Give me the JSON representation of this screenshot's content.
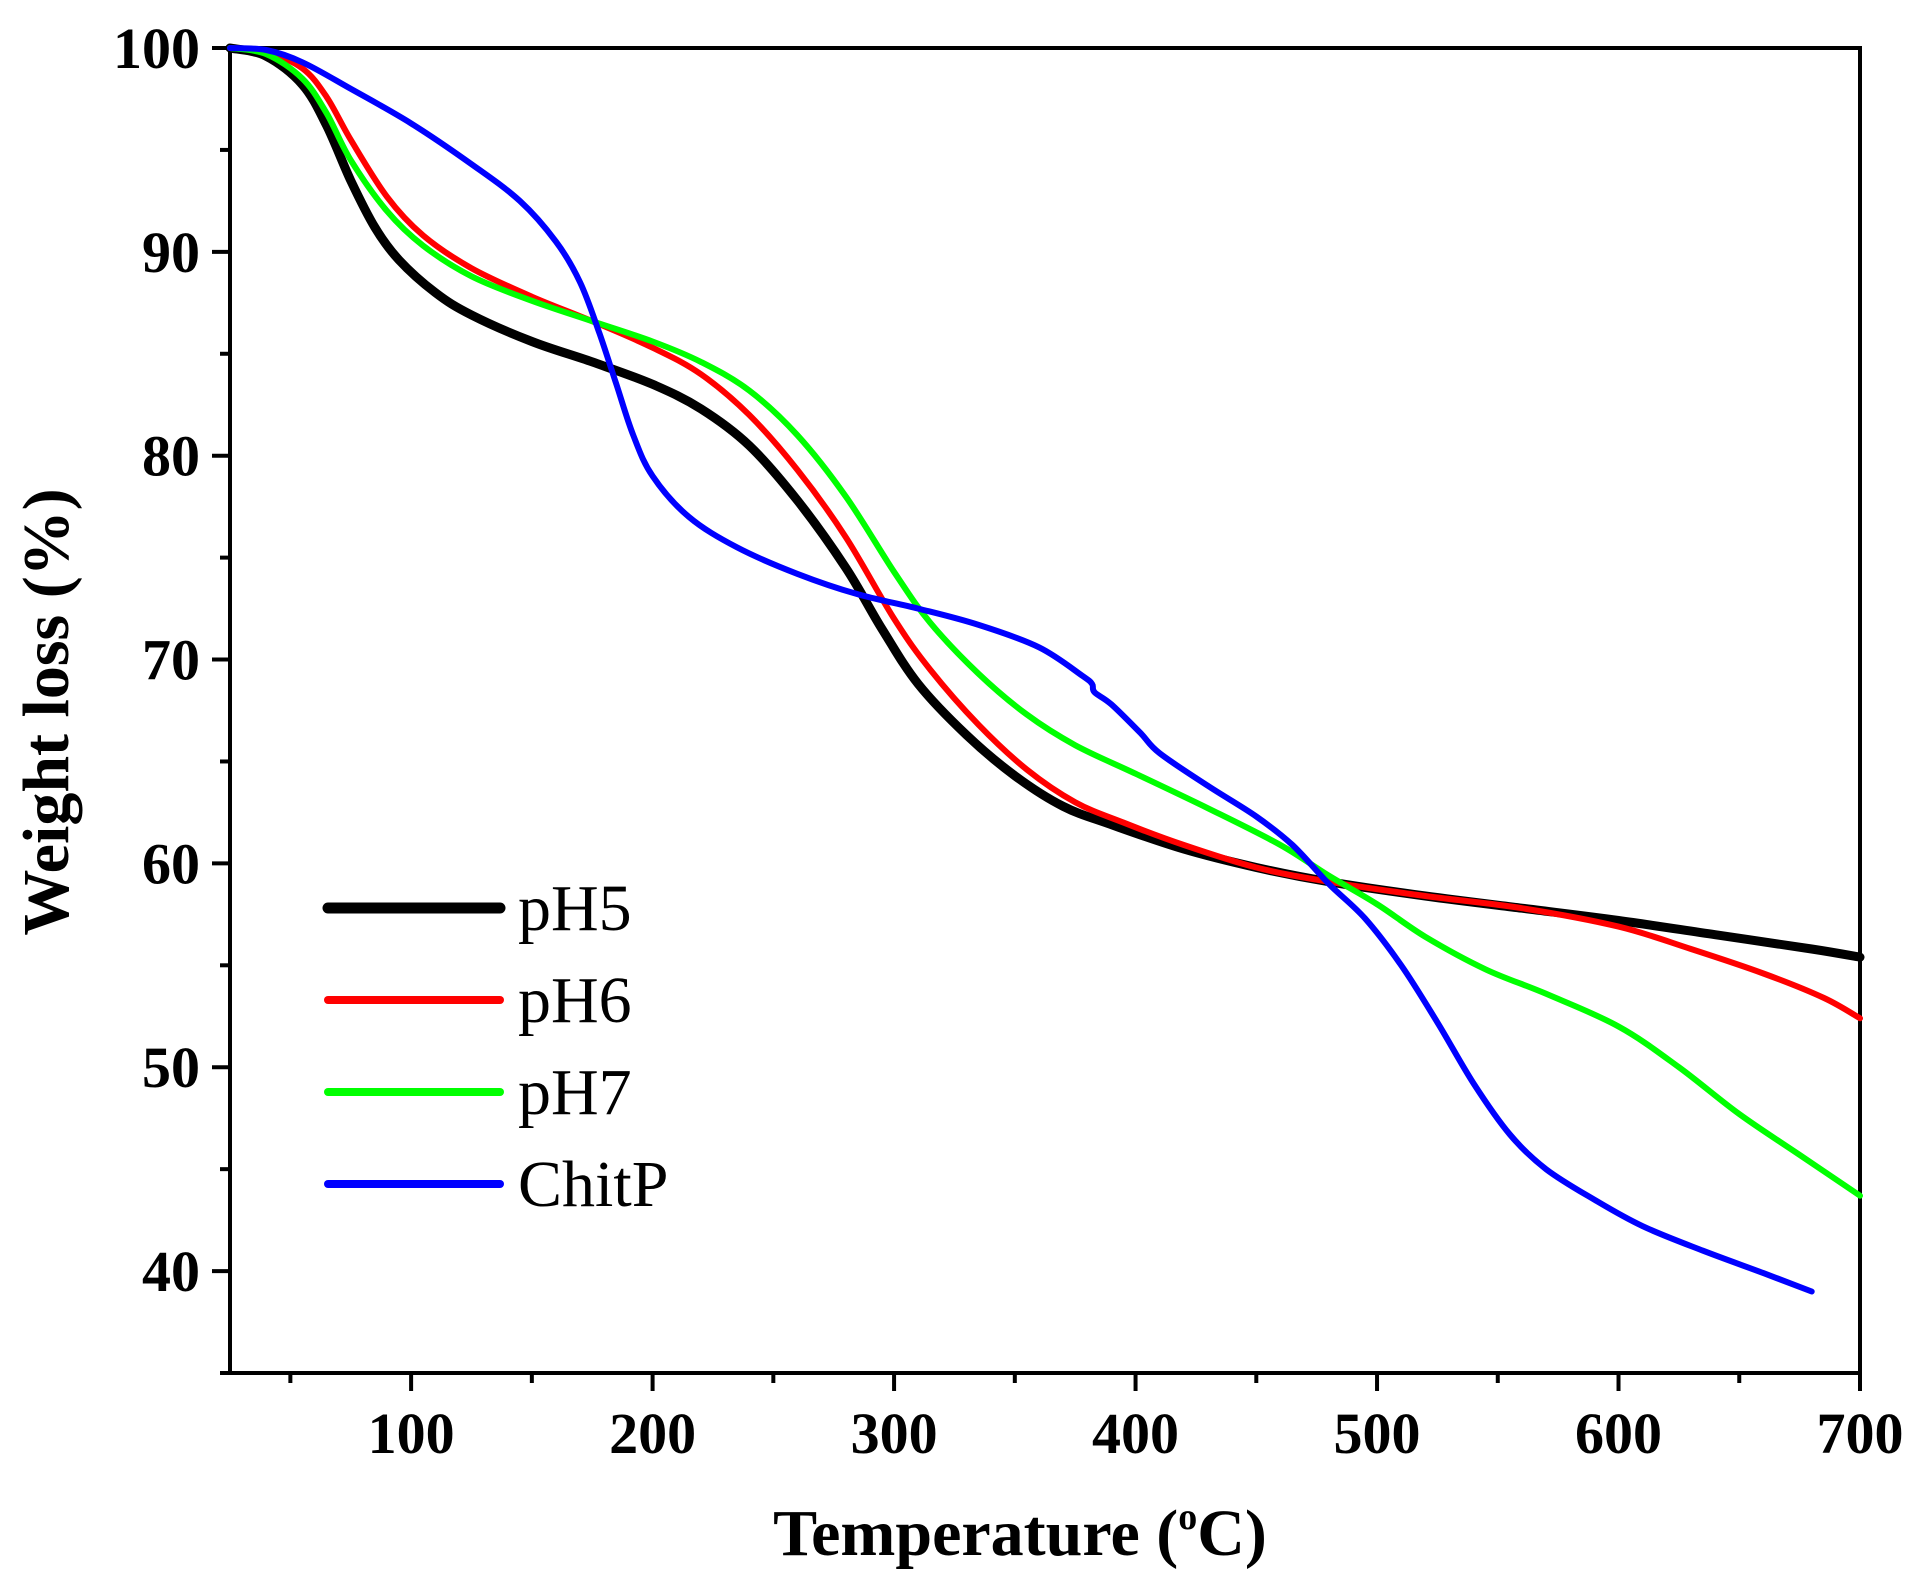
{
  "chart_data": {
    "type": "line",
    "title": "",
    "xlabel_main": "Temperature (",
    "xlabel_sup": "o",
    "xlabel_end": "C)",
    "ylabel": "Weight loss (%)",
    "xlim": [
      25,
      700
    ],
    "ylim": [
      35,
      100
    ],
    "x_ticks": [
      100,
      200,
      300,
      400,
      500,
      600,
      700
    ],
    "x_minor_ticks": [
      50,
      150,
      250,
      350,
      450,
      550,
      650
    ],
    "y_ticks": [
      40,
      50,
      60,
      70,
      80,
      90,
      100
    ],
    "y_minor_ticks": [
      35,
      45,
      55,
      65,
      75,
      85,
      95
    ],
    "legend_position": "bottom-left",
    "series": [
      {
        "name": "pH5",
        "color": "#000000",
        "width": 9,
        "points": [
          [
            25,
            100
          ],
          [
            40,
            99.6
          ],
          [
            55,
            98.2
          ],
          [
            65,
            96.2
          ],
          [
            75,
            93.5
          ],
          [
            85,
            91.2
          ],
          [
            95,
            89.6
          ],
          [
            110,
            88.0
          ],
          [
            125,
            86.9
          ],
          [
            150,
            85.6
          ],
          [
            175,
            84.6
          ],
          [
            200,
            83.5
          ],
          [
            220,
            82.3
          ],
          [
            240,
            80.5
          ],
          [
            260,
            77.8
          ],
          [
            280,
            74.5
          ],
          [
            295,
            71.5
          ],
          [
            310,
            68.8
          ],
          [
            330,
            66.3
          ],
          [
            350,
            64.3
          ],
          [
            370,
            62.8
          ],
          [
            390,
            61.9
          ],
          [
            420,
            60.7
          ],
          [
            450,
            59.8
          ],
          [
            480,
            59.1
          ],
          [
            520,
            58.4
          ],
          [
            560,
            57.8
          ],
          [
            600,
            57.2
          ],
          [
            640,
            56.5
          ],
          [
            680,
            55.8
          ],
          [
            700,
            55.4
          ]
        ]
      },
      {
        "name": "pH6",
        "color": "#ff0000",
        "width": 6,
        "points": [
          [
            25,
            100
          ],
          [
            40,
            99.8
          ],
          [
            55,
            99.0
          ],
          [
            65,
            97.6
          ],
          [
            75,
            95.5
          ],
          [
            90,
            92.7
          ],
          [
            105,
            90.8
          ],
          [
            125,
            89.2
          ],
          [
            150,
            87.8
          ],
          [
            175,
            86.6
          ],
          [
            200,
            85.3
          ],
          [
            220,
            84.0
          ],
          [
            240,
            82.0
          ],
          [
            260,
            79.3
          ],
          [
            280,
            76.0
          ],
          [
            300,
            72.0
          ],
          [
            315,
            69.5
          ],
          [
            335,
            66.8
          ],
          [
            355,
            64.6
          ],
          [
            375,
            63.0
          ],
          [
            395,
            62.0
          ],
          [
            420,
            60.9
          ],
          [
            450,
            59.8
          ],
          [
            480,
            59.1
          ],
          [
            520,
            58.4
          ],
          [
            560,
            57.8
          ],
          [
            600,
            56.9
          ],
          [
            630,
            55.8
          ],
          [
            660,
            54.6
          ],
          [
            685,
            53.4
          ],
          [
            700,
            52.4
          ]
        ]
      },
      {
        "name": "pH7",
        "color": "#00ff00",
        "width": 6,
        "points": [
          [
            25,
            100
          ],
          [
            40,
            99.7
          ],
          [
            55,
            98.5
          ],
          [
            65,
            96.8
          ],
          [
            75,
            94.5
          ],
          [
            90,
            92.0
          ],
          [
            105,
            90.3
          ],
          [
            125,
            88.8
          ],
          [
            150,
            87.6
          ],
          [
            175,
            86.6
          ],
          [
            200,
            85.6
          ],
          [
            220,
            84.6
          ],
          [
            240,
            83.2
          ],
          [
            260,
            81.0
          ],
          [
            280,
            78.0
          ],
          [
            300,
            74.3
          ],
          [
            315,
            71.8
          ],
          [
            335,
            69.3
          ],
          [
            355,
            67.3
          ],
          [
            375,
            65.8
          ],
          [
            400,
            64.4
          ],
          [
            430,
            62.7
          ],
          [
            460,
            60.9
          ],
          [
            480,
            59.4
          ],
          [
            500,
            58.0
          ],
          [
            520,
            56.4
          ],
          [
            545,
            54.8
          ],
          [
            570,
            53.6
          ],
          [
            600,
            52.0
          ],
          [
            625,
            50.0
          ],
          [
            650,
            47.7
          ],
          [
            675,
            45.7
          ],
          [
            700,
            43.7
          ]
        ]
      },
      {
        "name": "ChitP",
        "color": "#0000ff",
        "width": 6,
        "points": [
          [
            25,
            100
          ],
          [
            40,
            99.9
          ],
          [
            55,
            99.3
          ],
          [
            75,
            98.0
          ],
          [
            100,
            96.3
          ],
          [
            125,
            94.3
          ],
          [
            145,
            92.5
          ],
          [
            160,
            90.5
          ],
          [
            170,
            88.5
          ],
          [
            178,
            86.0
          ],
          [
            185,
            83.5
          ],
          [
            192,
            81.0
          ],
          [
            200,
            79.0
          ],
          [
            215,
            77.0
          ],
          [
            235,
            75.5
          ],
          [
            260,
            74.2
          ],
          [
            285,
            73.2
          ],
          [
            310,
            72.5
          ],
          [
            335,
            71.7
          ],
          [
            360,
            70.6
          ],
          [
            378,
            69.2
          ],
          [
            382,
            68.8
          ],
          [
            383,
            68.4
          ],
          [
            390,
            67.8
          ],
          [
            402,
            66.4
          ],
          [
            410,
            65.4
          ],
          [
            430,
            63.8
          ],
          [
            450,
            62.3
          ],
          [
            465,
            60.9
          ],
          [
            480,
            59.0
          ],
          [
            495,
            57.3
          ],
          [
            510,
            55.0
          ],
          [
            525,
            52.2
          ],
          [
            540,
            49.2
          ],
          [
            555,
            46.7
          ],
          [
            570,
            45.0
          ],
          [
            590,
            43.5
          ],
          [
            610,
            42.2
          ],
          [
            635,
            41.0
          ],
          [
            660,
            39.9
          ],
          [
            680,
            39.0
          ]
        ]
      }
    ]
  }
}
